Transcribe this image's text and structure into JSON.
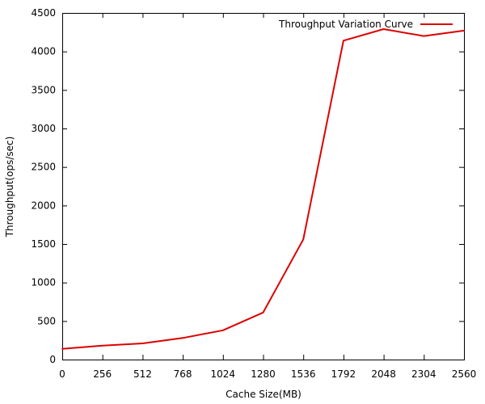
{
  "chart_data": {
    "type": "line",
    "title": "",
    "xlabel": "Cache Size(MB)",
    "ylabel": "Throughput(ops/sec)",
    "xlim": [
      0,
      2560
    ],
    "ylim": [
      0,
      4500
    ],
    "xticks": [
      0,
      256,
      512,
      768,
      1024,
      1280,
      1536,
      1792,
      2048,
      2304,
      2560
    ],
    "yticks": [
      0,
      500,
      1000,
      1500,
      2000,
      2500,
      3000,
      3500,
      4000,
      4500
    ],
    "grid": false,
    "legend_position": "top-right",
    "series": [
      {
        "name": "Throughput Variation Curve",
        "color": "#dd0000",
        "x": [
          0,
          256,
          512,
          768,
          1024,
          1280,
          1536,
          1792,
          2048,
          2304,
          2560
        ],
        "y": [
          140,
          180,
          210,
          280,
          380,
          610,
          1560,
          4140,
          4290,
          4200,
          4270
        ]
      }
    ]
  }
}
